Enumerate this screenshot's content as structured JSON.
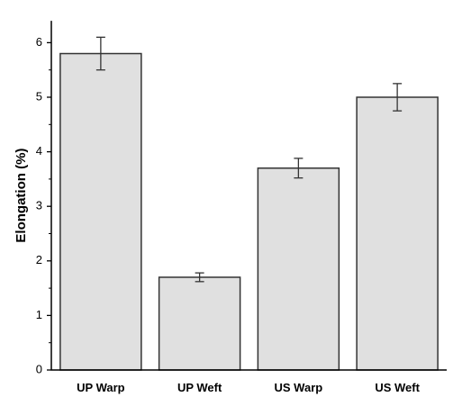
{
  "chart_data": {
    "type": "bar",
    "title": "",
    "xlabel": "",
    "ylabel": "Elongation (%)",
    "categories": [
      "UP Warp",
      "UP Weft",
      "US Warp",
      "US Weft"
    ],
    "values": [
      5.8,
      1.7,
      3.7,
      5.0
    ],
    "error": [
      0.3,
      0.08,
      0.18,
      0.25
    ],
    "ylim": [
      0,
      6.4
    ],
    "yticks": [
      0,
      1,
      2,
      3,
      4,
      5,
      6
    ],
    "grid": false,
    "legend": "none",
    "colors": {
      "bar_fill": "#e0e0e0",
      "bar_stroke": "#333333",
      "axis": "#000000",
      "error_bar": "#333333"
    }
  }
}
